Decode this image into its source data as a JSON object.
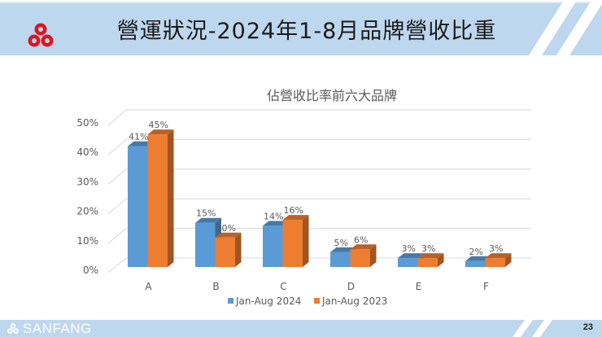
{
  "slide": {
    "title": "營運狀況-2024年1-8月品牌營收比重",
    "page_number": "23",
    "footer_brand": "SANFANG",
    "colors": {
      "header_bg": "#bdd7ee",
      "logo_red": "#e0141e",
      "series_2024": "#5b9bd5",
      "series_2023": "#ed7d31"
    }
  },
  "chart_data": {
    "type": "bar",
    "title": "佔營收比率前六大品牌",
    "categories": [
      "A",
      "B",
      "C",
      "D",
      "E",
      "F"
    ],
    "series": [
      {
        "name": "Jan-Aug 2024",
        "values": [
          41,
          15,
          14,
          5,
          3,
          2
        ],
        "labels": [
          "41%",
          "15%",
          "14%",
          "5%",
          "3%",
          "2%"
        ],
        "color": "#5b9bd5"
      },
      {
        "name": "Jan-Aug 2023",
        "values": [
          45,
          10,
          16,
          6,
          3,
          3
        ],
        "labels": [
          "45%",
          "10%",
          "16%",
          "6%",
          "3%",
          "3%"
        ],
        "color": "#ed7d31"
      }
    ],
    "xlabel": "",
    "ylabel": "",
    "ylim": [
      0,
      50
    ],
    "yticks": [
      "0%",
      "10%",
      "20%",
      "30%",
      "40%",
      "50%"
    ],
    "grid": true,
    "legend_position": "bottom",
    "style": "3d-clustered-column"
  }
}
